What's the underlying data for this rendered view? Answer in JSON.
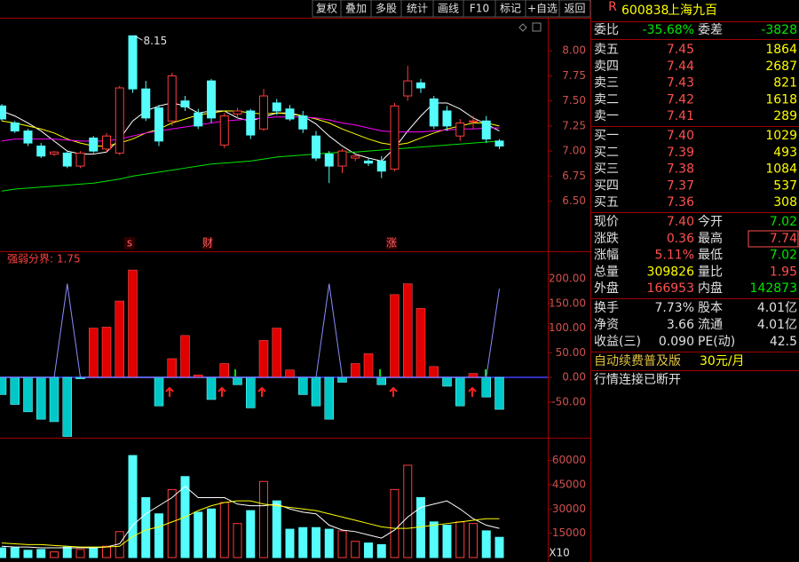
{
  "toolbar": [
    "复权",
    "叠加",
    "多股",
    "统计",
    "画线",
    "F10",
    "标记",
    "+自选",
    "返回"
  ],
  "stock": {
    "flag": "R",
    "code": "600838",
    "name": "上海九百"
  },
  "order_book": {
    "summary": [
      "委比",
      "-35.68%",
      "委差",
      "-3828"
    ],
    "asks": [
      [
        "卖五",
        "7.45",
        "1864"
      ],
      [
        "卖四",
        "7.44",
        "2687"
      ],
      [
        "卖三",
        "7.43",
        "821"
      ],
      [
        "卖二",
        "7.42",
        "1618"
      ],
      [
        "卖一",
        "7.41",
        "289"
      ]
    ],
    "bids": [
      [
        "买一",
        "7.40",
        "1029"
      ],
      [
        "买二",
        "7.39",
        "493"
      ],
      [
        "买三",
        "7.38",
        "1084"
      ],
      [
        "买四",
        "7.37",
        "537"
      ],
      [
        "买五",
        "7.36",
        "308"
      ]
    ]
  },
  "quote": {
    "rows": [
      [
        "现价",
        "7.40",
        "今开",
        "7.02"
      ],
      [
        "涨跌",
        "0.36",
        "最高",
        "7.74"
      ],
      [
        "涨幅",
        "5.11%",
        "最低",
        "7.02"
      ],
      [
        "总量",
        "309826",
        "量比",
        "1.95"
      ],
      [
        "外盘",
        "166953",
        "内盘",
        "142873"
      ]
    ],
    "colors": [
      [
        "#ff5050",
        "#00e600"
      ],
      [
        "#ff5050",
        "#ff5050"
      ],
      [
        "#ff5050",
        "#00e600"
      ],
      [
        "#ffff00",
        "#ff5050"
      ],
      [
        "#ff5050",
        "#00e600"
      ]
    ],
    "fundamentals": [
      [
        "换手",
        "7.73%",
        "股本",
        "4.01亿"
      ],
      [
        "净资",
        "3.66",
        "流通",
        "4.01亿"
      ],
      [
        "收益(三)",
        "0.090",
        "PE(动)",
        "42.5"
      ]
    ],
    "promo": "自动续费普及版",
    "price_tag": "30元/月",
    "status": "行情连接已断开"
  },
  "chart_data": [
    {
      "type": "candlestick",
      "open": [
        7.45,
        7.28,
        7.2,
        7.05,
        6.97,
        6.98,
        6.85,
        7.13,
        7.02,
        6.98,
        8.15,
        7.62,
        7.43,
        7.3,
        7.5,
        7.38,
        7.7,
        7.06,
        7.37,
        7.4,
        7.22,
        7.48,
        7.42,
        7.35,
        7.15,
        6.97,
        6.85,
        6.93,
        6.9,
        6.9,
        6.82,
        7.55,
        7.68,
        7.52,
        7.4,
        7.15,
        7.3,
        7.3,
        7.1
      ],
      "high": [
        7.47,
        7.3,
        7.22,
        7.08,
        7.0,
        7.0,
        7.0,
        7.15,
        7.18,
        7.65,
        8.15,
        7.7,
        7.46,
        7.78,
        7.55,
        7.42,
        7.72,
        7.38,
        7.43,
        7.42,
        7.62,
        7.52,
        7.46,
        7.4,
        7.2,
        7.0,
        7.02,
        6.97,
        6.93,
        6.95,
        7.48,
        7.85,
        7.72,
        7.55,
        7.45,
        7.32,
        7.35,
        7.35,
        7.12
      ],
      "low": [
        7.3,
        7.18,
        7.05,
        6.93,
        6.95,
        6.83,
        6.83,
        6.98,
        6.99,
        6.96,
        7.58,
        7.3,
        7.05,
        7.25,
        7.4,
        7.22,
        7.28,
        7.03,
        7.33,
        7.12,
        7.2,
        7.36,
        7.3,
        7.18,
        6.9,
        6.68,
        6.78,
        6.9,
        6.85,
        6.73,
        6.8,
        7.5,
        7.58,
        7.22,
        7.2,
        7.1,
        7.22,
        7.08,
        7.02
      ],
      "close": [
        7.32,
        7.2,
        7.08,
        6.95,
        6.99,
        6.85,
        6.98,
        7.0,
        7.15,
        7.63,
        7.62,
        7.33,
        7.1,
        7.75,
        7.44,
        7.25,
        7.33,
        7.35,
        7.4,
        7.16,
        7.55,
        7.4,
        7.32,
        7.22,
        6.93,
        6.85,
        7.0,
        6.95,
        6.88,
        6.8,
        7.45,
        7.7,
        7.63,
        7.25,
        7.25,
        7.28,
        7.3,
        7.12,
        7.05
      ],
      "lines": [
        {
          "color": "#ffffff",
          "values": [
            7.4,
            7.35,
            7.28,
            7.2,
            7.1,
            7.0,
            6.97,
            6.97,
            6.99,
            7.12,
            7.3,
            7.4,
            7.45,
            7.48,
            7.45,
            7.38,
            7.4,
            7.4,
            7.33,
            7.3,
            7.34,
            7.38,
            7.38,
            7.35,
            7.27,
            7.15,
            7.05,
            6.97,
            6.93,
            6.9,
            7.03,
            7.2,
            7.35,
            7.48,
            7.48,
            7.42,
            7.33,
            7.27,
            7.2
          ]
        },
        {
          "color": "#ffff00",
          "values": [
            7.3,
            7.28,
            7.25,
            7.22,
            7.18,
            7.12,
            7.08,
            7.05,
            7.05,
            7.08,
            7.12,
            7.18,
            7.22,
            7.28,
            7.32,
            7.36,
            7.38,
            7.4,
            7.4,
            7.38,
            7.37,
            7.38,
            7.37,
            7.35,
            7.32,
            7.28,
            7.22,
            7.17,
            7.12,
            7.08,
            7.06,
            7.08,
            7.13,
            7.18,
            7.22,
            7.25,
            7.28,
            7.28,
            7.25
          ]
        },
        {
          "color": "#ff00ff",
          "values": [
            7.1,
            7.12,
            7.12,
            7.12,
            7.12,
            7.11,
            7.1,
            7.1,
            7.1,
            7.12,
            7.15,
            7.18,
            7.2,
            7.22,
            7.24,
            7.26,
            7.28,
            7.3,
            7.31,
            7.32,
            7.33,
            7.34,
            7.34,
            7.34,
            7.33,
            7.31,
            7.28,
            7.26,
            7.23,
            7.2,
            7.19,
            7.19,
            7.19,
            7.2,
            7.21,
            7.22,
            7.22,
            7.23,
            7.23
          ]
        },
        {
          "color": "#00e600",
          "values": [
            6.6,
            6.62,
            6.63,
            6.64,
            6.65,
            6.66,
            6.67,
            6.68,
            6.7,
            6.72,
            6.75,
            6.77,
            6.79,
            6.81,
            6.83,
            6.85,
            6.87,
            6.88,
            6.89,
            6.9,
            6.92,
            6.94,
            6.95,
            6.96,
            6.97,
            6.98,
            6.99,
            6.99,
            7.0,
            7.01,
            7.02,
            7.03,
            7.04,
            7.05,
            7.06,
            7.07,
            7.08,
            7.09,
            7.1
          ]
        }
      ],
      "annotation": "8.15",
      "markers": [
        "s",
        "财",
        "涨"
      ],
      "ylim": [
        6.0,
        8.33
      ],
      "yticks": [
        {
          "value": 8.0,
          "label": "8.00"
        },
        {
          "value": 7.75,
          "label": "7.75"
        },
        {
          "value": 7.5,
          "label": "7.50"
        },
        {
          "value": 7.25,
          "label": "7.25"
        },
        {
          "value": 7.0,
          "label": "7.00"
        },
        {
          "value": 6.75,
          "label": "6.75"
        },
        {
          "value": 6.5,
          "label": "6.50"
        }
      ],
      "up_color": "#ff3c3c",
      "down_color": "#54fcfc"
    },
    {
      "type": "bar",
      "title": "强弱分界: 1.75",
      "values": [
        -35,
        -55,
        -70,
        -85,
        -90,
        -120,
        -3,
        100,
        102,
        155,
        218,
        0,
        -58,
        38,
        85,
        5,
        -45,
        28,
        -15,
        -62,
        75,
        100,
        15,
        -35,
        -58,
        -85,
        -10,
        28,
        48,
        -15,
        168,
        190,
        140,
        22,
        -18,
        -58,
        8,
        -40,
        -65
      ],
      "line": {
        "color": "#8c8cff",
        "values": [
          0,
          0,
          0,
          0,
          0,
          190,
          0,
          0,
          0,
          0,
          0,
          0,
          0,
          0,
          0,
          0,
          0,
          0,
          0,
          0,
          0,
          0,
          0,
          0,
          0,
          190,
          0,
          0,
          0,
          0,
          0,
          0,
          0,
          0,
          0,
          0,
          0,
          0,
          180
        ]
      },
      "ylim": [
        -122.5,
        256
      ],
      "yticks": [
        {
          "value": 200,
          "label": "200.00"
        },
        {
          "value": 150,
          "label": "150.00"
        },
        {
          "value": 100,
          "label": "100.00"
        },
        {
          "value": 50,
          "label": "50.00"
        },
        {
          "value": 0,
          "label": "0.00"
        },
        {
          "value": -50,
          "label": "-50.00"
        }
      ],
      "up_color": "#e00000",
      "down_color": "#00c8c8"
    },
    {
      "type": "volume",
      "values": [
        6000,
        6000,
        4500,
        5000,
        3500,
        6500,
        5000,
        6000,
        7000,
        16000,
        63000,
        37000,
        27000,
        42000,
        50000,
        28000,
        30000,
        34000,
        21000,
        29000,
        47000,
        35000,
        17500,
        18500,
        18500,
        17500,
        16500,
        10000,
        9000,
        8000,
        42000,
        57000,
        37000,
        22000,
        20000,
        22000,
        21000,
        16500,
        12500
      ],
      "lines": [
        {
          "color": "#ffffff",
          "values": [
            7000,
            6500,
            6500,
            6000,
            6000,
            6000,
            6000,
            6000,
            6500,
            8500,
            20000,
            27000,
            32000,
            37000,
            44000,
            37000,
            37000,
            37000,
            33000,
            32000,
            32000,
            33000,
            30000,
            28000,
            27000,
            20000,
            17000,
            16000,
            14000,
            12000,
            17000,
            25000,
            31000,
            33000,
            35000,
            30000,
            24000,
            20000,
            18000
          ]
        },
        {
          "color": "#ffff00",
          "values": [
            9000,
            8500,
            8000,
            8000,
            7500,
            7000,
            6500,
            6500,
            6500,
            7000,
            13000,
            17000,
            19000,
            22000,
            25000,
            29000,
            32000,
            34000,
            35000,
            35000,
            33000,
            32000,
            31000,
            30000,
            29000,
            27000,
            25000,
            23000,
            21000,
            19000,
            18000,
            18000,
            19000,
            20000,
            21000,
            22000,
            23000,
            24000,
            24000
          ]
        }
      ],
      "unit": "X10",
      "ylim": [
        0,
        74000
      ],
      "yticks": [
        60000,
        45000,
        30000,
        15000
      ]
    }
  ]
}
